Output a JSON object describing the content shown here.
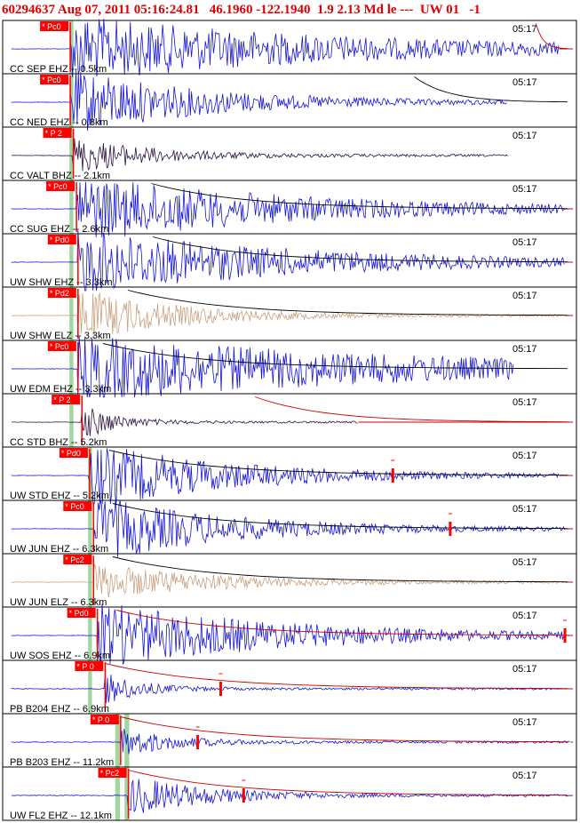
{
  "header": {
    "text": "60294637 Aug 07, 2011 05:16:24.81   46.1960 -122.1940  1.9 2.13 Md le ---  UW 01   -1"
  },
  "colors": {
    "header": "#e00000",
    "ehz_trace": "#1515d8",
    "bhz_trace": "#2a1040",
    "elz_trace": "#c8a07e",
    "phase_flag": "#ff0000",
    "coda_curve": "#000000",
    "amp_curve": "#cc0000",
    "pick_band": "#9fd79f"
  },
  "chart_data": {
    "type": "seismogram",
    "event_id": "60294637",
    "origin_time": "Aug 07, 2011 05:16:24.81",
    "latitude": 46.196,
    "longitude": -122.194,
    "magnitude": 1.9,
    "magnitude_type": "Md",
    "time_label": "05:17",
    "traces": [
      {
        "label": "CC SEP EHZ -- 0.5km",
        "phase": "Pc0",
        "component": "EHZ",
        "p_time": 0.7,
        "amp": 1.0,
        "decay": 0.55,
        "end": 0.97,
        "coda": "amp",
        "coda_start": 0.92
      },
      {
        "label": "CC NED EHZ -- 0.8km",
        "phase": "Pc0",
        "component": "EHZ",
        "p_time": 0.7,
        "amp": 1.0,
        "decay": 0.3,
        "end": 0.88,
        "coda": "black",
        "coda_start": 0.68
      },
      {
        "label": "CC VALT BHZ -- 2.1km",
        "phase": "P 2",
        "component": "BHZ",
        "p_time": 0.74,
        "amp": 0.55,
        "decay": 0.18,
        "end": 0.88
      },
      {
        "label": "CC SUG EHZ -- 2.6km",
        "phase": "Pc0",
        "component": "EHZ",
        "p_time": 0.78,
        "amp": 1.0,
        "decay": 0.45,
        "end": 0.98,
        "coda": "both",
        "coda_start": 0.15
      },
      {
        "label": "UW SHW EHZ -- 3.3km",
        "phase": "Pd0",
        "component": "EHZ",
        "p_time": 0.8,
        "amp": 1.0,
        "decay": 0.45,
        "end": 0.98,
        "coda": "both",
        "coda_start": 0.15
      },
      {
        "label": "UW SHW ELZ -- 3.3km",
        "phase": "Pd2",
        "component": "ELZ",
        "p_time": 0.8,
        "amp": 0.8,
        "decay": 0.2,
        "end": 0.98,
        "coda": "both",
        "coda_start": 0.1
      },
      {
        "label": "UW EDM EHZ -- 3.3km",
        "phase": "Pc0",
        "component": "EHZ",
        "p_time": 0.8,
        "amp": 1.0,
        "decay": 0.8,
        "end": 0.89,
        "coda": "black",
        "coda_start": 0.05
      },
      {
        "label": "CC STD BHZ -- 5.2km",
        "phase": "P 2",
        "component": "BHZ",
        "p_time": 0.85,
        "amp": 0.55,
        "decay": 0.12,
        "end": 0.62,
        "coda": "amp",
        "coda_start": 0.35
      },
      {
        "label": "UW STD EHZ -- 5.2km",
        "phase": "Pd0",
        "component": "EHZ",
        "p_time": 0.95,
        "amp": 1.0,
        "decay": 0.3,
        "end": 0.97,
        "coda": "both",
        "coda_start": 0.04,
        "tick": 0.68
      },
      {
        "label": "UW JUN EHZ -- 6.3km",
        "phase": "Pc0",
        "component": "EHZ",
        "p_time": 1.0,
        "amp": 1.0,
        "decay": 0.28,
        "end": 0.98,
        "coda": "both",
        "coda_start": 0.04,
        "tick": 0.78
      },
      {
        "label": "UW JUN ELZ -- 6.3km",
        "phase": "Pc2",
        "component": "ELZ",
        "p_time": 1.0,
        "amp": 0.55,
        "decay": 0.25,
        "end": 0.98,
        "coda": "both",
        "coda_start": 0.04
      },
      {
        "label": "UW SOS EHZ -- 6.9km",
        "phase": "Pd0",
        "component": "EHZ",
        "p_time": 1.05,
        "amp": 1.0,
        "decay": 0.4,
        "end": 0.98,
        "coda": "amp",
        "coda_start": 0.04,
        "tick": 0.98
      },
      {
        "label": "PB B204 EHZ -- 6.9km",
        "phase": "P 0",
        "component": "EHZ",
        "p_time": 1.15,
        "amp": 0.5,
        "decay": 0.08,
        "end": 0.97,
        "coda": "amp",
        "coda_start": 0.0,
        "tick": 0.38
      },
      {
        "label": "PB B203 EHZ -- 11.2km",
        "phase": "P 0",
        "component": "EHZ",
        "p_time": 1.35,
        "amp": 0.45,
        "decay": 0.12,
        "end": 0.99,
        "coda": "amp",
        "coda_start": 0.0,
        "tick": 0.34
      },
      {
        "label": "UW FL2 EHZ -- 12.1km",
        "phase": "Pc2",
        "component": "EHZ",
        "p_time": 1.45,
        "amp": 0.6,
        "decay": 0.18,
        "end": 0.99,
        "coda": "amp",
        "coda_start": 0.0,
        "tick": 0.42
      }
    ]
  }
}
